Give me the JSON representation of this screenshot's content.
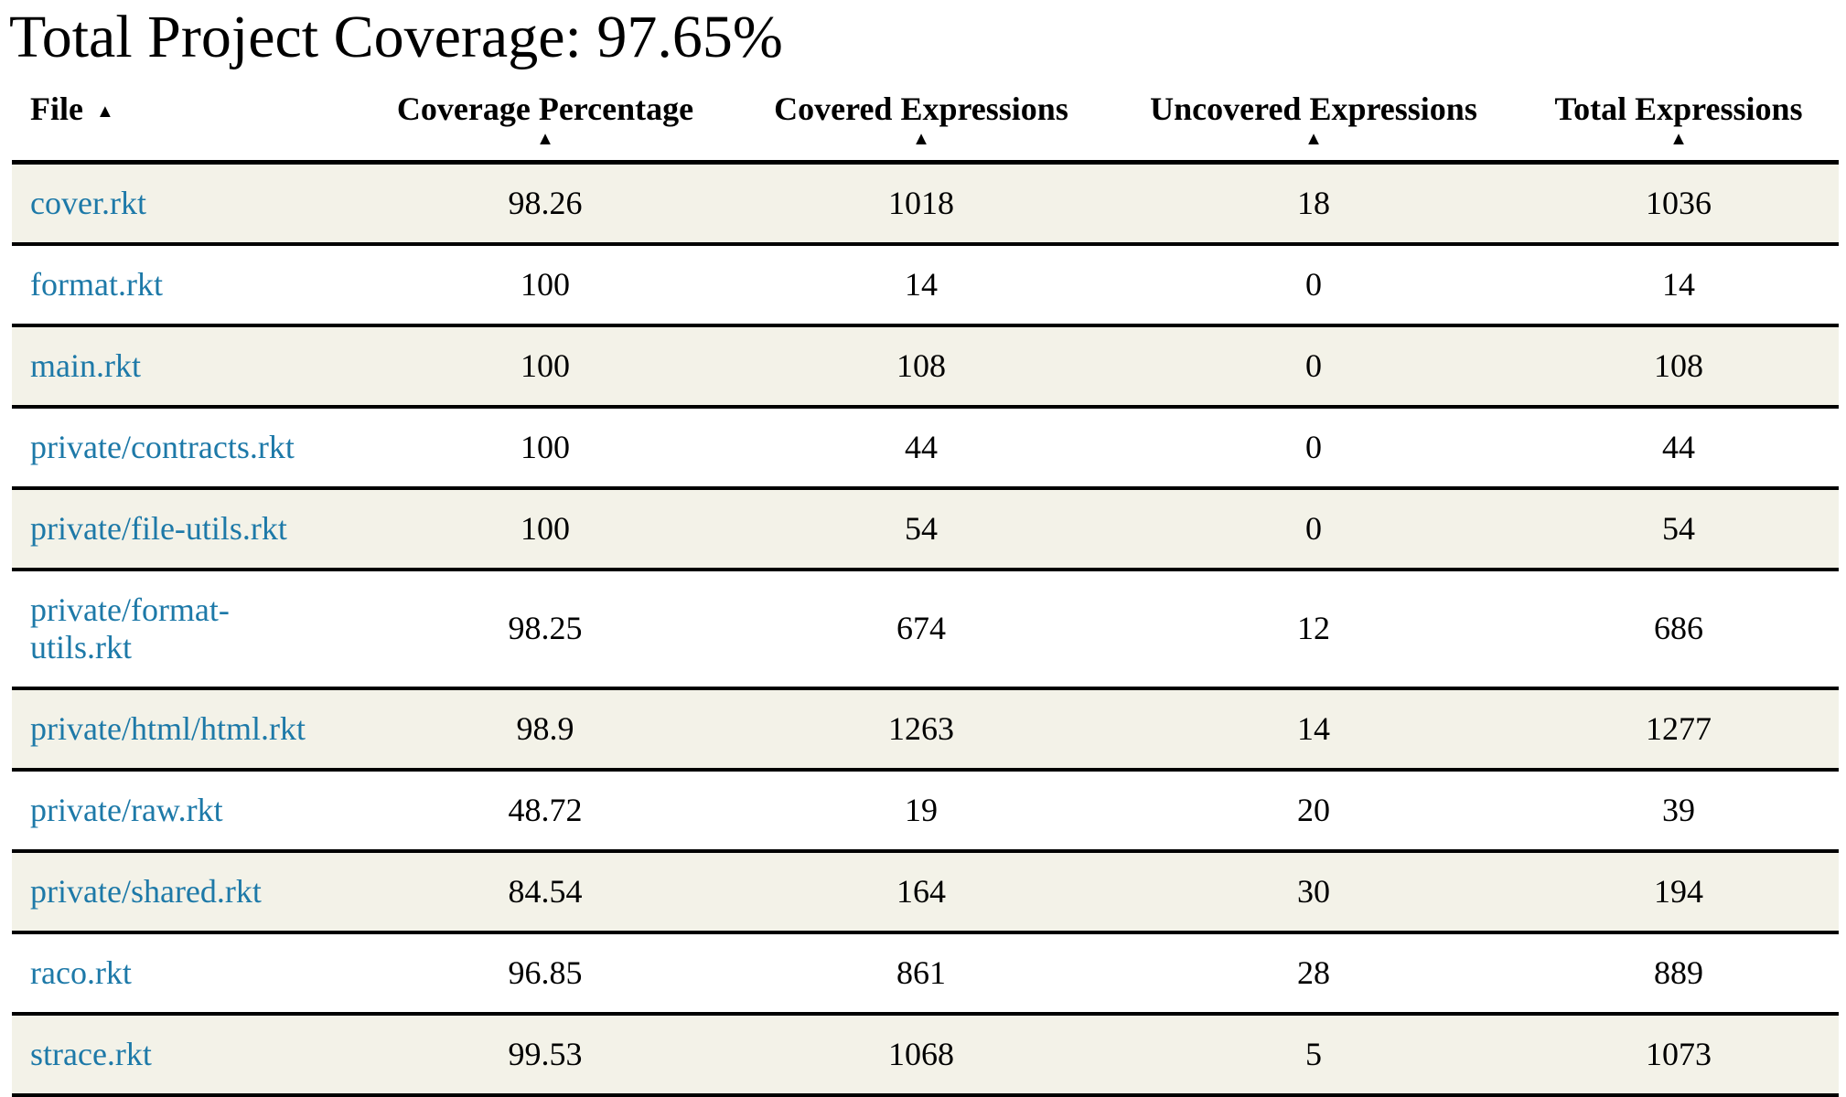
{
  "page": {
    "title": "Total Project Coverage: 97.65%"
  },
  "colors": {
    "stripe_row_background": "#f3f2e8",
    "plain_row_background": "#ffffff",
    "file_link": "#1d79a8",
    "text": "#000000",
    "row_border": "#000000"
  },
  "table": {
    "columns": [
      {
        "label": "File",
        "sort_icon": "▲",
        "sort_icon_position": "inline"
      },
      {
        "label": "Coverage Percentage",
        "sort_icon": "▲",
        "sort_icon_position": "below"
      },
      {
        "label": "Covered Expressions",
        "sort_icon": "▲",
        "sort_icon_position": "below"
      },
      {
        "label": "Uncovered Expressions",
        "sort_icon": "▲",
        "sort_icon_position": "below"
      },
      {
        "label": "Total Expressions",
        "sort_icon": "▲",
        "sort_icon_position": "below"
      }
    ],
    "rows": [
      {
        "file": "cover.rkt",
        "coverage_percentage": "98.26",
        "covered": "1018",
        "uncovered": "18",
        "total": "1036"
      },
      {
        "file": "format.rkt",
        "coverage_percentage": "100",
        "covered": "14",
        "uncovered": "0",
        "total": "14"
      },
      {
        "file": "main.rkt",
        "coverage_percentage": "100",
        "covered": "108",
        "uncovered": "0",
        "total": "108"
      },
      {
        "file": "private/contracts.rkt",
        "coverage_percentage": "100",
        "covered": "44",
        "uncovered": "0",
        "total": "44"
      },
      {
        "file": "private/file-utils.rkt",
        "coverage_percentage": "100",
        "covered": "54",
        "uncovered": "0",
        "total": "54"
      },
      {
        "file": "private/format-utils.rkt",
        "coverage_percentage": "98.25",
        "covered": "674",
        "uncovered": "12",
        "total": "686"
      },
      {
        "file": "private/html/html.rkt",
        "coverage_percentage": "98.9",
        "covered": "1263",
        "uncovered": "14",
        "total": "1277"
      },
      {
        "file": "private/raw.rkt",
        "coverage_percentage": "48.72",
        "covered": "19",
        "uncovered": "20",
        "total": "39"
      },
      {
        "file": "private/shared.rkt",
        "coverage_percentage": "84.54",
        "covered": "164",
        "uncovered": "30",
        "total": "194"
      },
      {
        "file": "raco.rkt",
        "coverage_percentage": "96.85",
        "covered": "861",
        "uncovered": "28",
        "total": "889"
      },
      {
        "file": "strace.rkt",
        "coverage_percentage": "99.53",
        "covered": "1068",
        "uncovered": "5",
        "total": "1073"
      }
    ]
  }
}
